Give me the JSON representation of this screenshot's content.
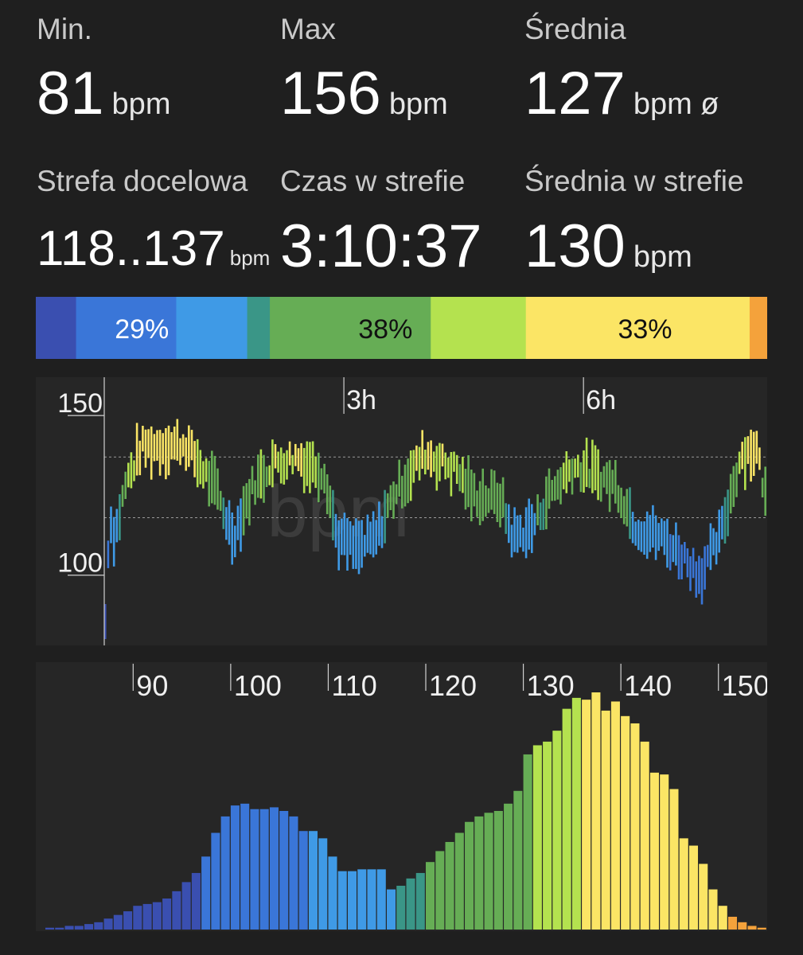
{
  "stats": {
    "min": {
      "label": "Min.",
      "value": "81",
      "unit": "bpm"
    },
    "max": {
      "label": "Max",
      "value": "156",
      "unit": "bpm"
    },
    "avg": {
      "label": "Średnia",
      "value": "127",
      "unit": "bpm ø"
    },
    "target_zone": {
      "label": "Strefa docelowa",
      "value": "118..137",
      "unit": "bpm"
    },
    "time_in_zone": {
      "label": "Czas w strefie",
      "value": "3:10:37"
    },
    "avg_in_zone": {
      "label": "Średnia w strefie",
      "value": "130",
      "unit": "bpm"
    }
  },
  "zone_bar": {
    "segments": [
      {
        "fraction": 0.055,
        "color": "#3a4fb0"
      },
      {
        "fraction": 0.137,
        "color": "#3a76d8"
      },
      {
        "fraction": 0.097,
        "color": "#3f9ae6"
      },
      {
        "fraction": 0.031,
        "color": "#3a9687"
      },
      {
        "fraction": 0.22,
        "color": "#66ad55"
      },
      {
        "fraction": 0.13,
        "color": "#b4e24f"
      },
      {
        "fraction": 0.306,
        "color": "#fbe565"
      },
      {
        "fraction": 0.024,
        "color": "#f4a23b"
      }
    ],
    "labels": [
      {
        "text": "29%",
        "at_fraction": 0.145,
        "color": "#ffffff"
      },
      {
        "text": "38%",
        "at_fraction": 0.478,
        "color": "#111111"
      },
      {
        "text": "33%",
        "at_fraction": 0.833,
        "color": "#111111"
      }
    ]
  },
  "timeline": {
    "watermark": "bpm",
    "y_ticks": [
      "150",
      "100"
    ],
    "x_markers": [
      "3h",
      "6h"
    ],
    "y_range": [
      78,
      160
    ],
    "target_zone": [
      118,
      137
    ],
    "duration_hours": 8.3
  },
  "histogram": {
    "x_ticks": [
      "90",
      "100",
      "110",
      "120",
      "130",
      "140",
      "150"
    ],
    "bpm_range": [
      81,
      156
    ],
    "counts": [
      1,
      1,
      2,
      2,
      3,
      4,
      6,
      8,
      10,
      13,
      14,
      15,
      17,
      21,
      26,
      31,
      40,
      53,
      62,
      68,
      69,
      66,
      66,
      67,
      65,
      62,
      54,
      54,
      50,
      40,
      32,
      32,
      33,
      33,
      33,
      22,
      24,
      28,
      31,
      37,
      43,
      48,
      53,
      59,
      62,
      64,
      65,
      69,
      76,
      96,
      101,
      103,
      109,
      121,
      127,
      126,
      130,
      120,
      125,
      117,
      113,
      103,
      86,
      85,
      77,
      50,
      46,
      36,
      22,
      13,
      7,
      4,
      2,
      1
    ],
    "colors": {
      "low": "#3a4fb0",
      "blue": "#3a76d8",
      "light_blue": "#3f9ae6",
      "teal": "#3a9687",
      "green": "#66ad55",
      "lime": "#b4e24f",
      "yellow": "#fbe565",
      "orange": "#f4a23b"
    }
  }
}
